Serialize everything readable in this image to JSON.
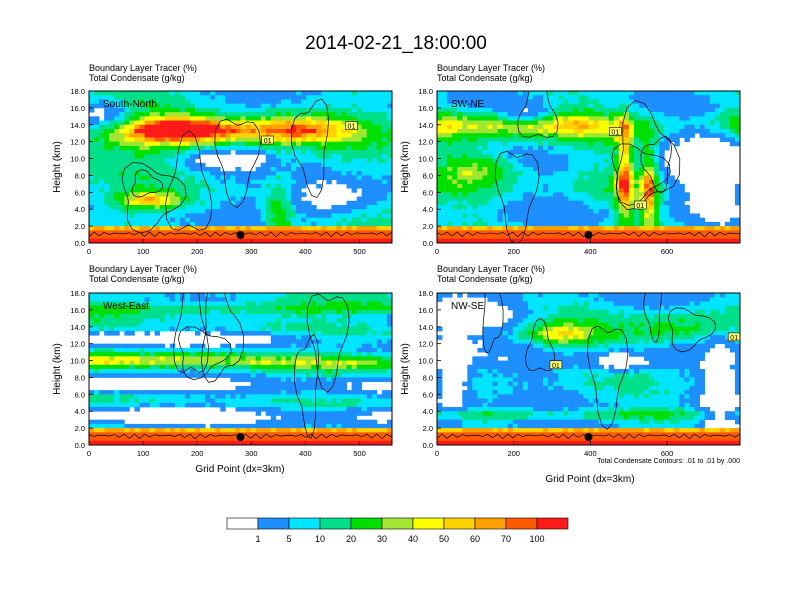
{
  "main_title": "2014-02-21_18:00:00",
  "colors": {
    "levels": [
      "#ffffff",
      "#1e8fff",
      "#00e5ff",
      "#00e08a",
      "#00e000",
      "#a0e632",
      "#ffff00",
      "#ffd200",
      "#ffa000",
      "#ff5a00",
      "#ff1a1a"
    ],
    "contour": "#000000",
    "marker": "#000000"
  },
  "colorbar": {
    "labels": [
      "1",
      "5",
      "10",
      "20",
      "30",
      "40",
      "50",
      "60",
      "70",
      "100"
    ]
  },
  "chart_data": [
    {
      "type": "heatmap",
      "title": "South-North",
      "subtitle_lines": [
        "Boundary Layer Tracer   (%)",
        "Total Condensate   (g/kg)"
      ],
      "ylabel": "Height (km)",
      "xlabel": "",
      "ylim": [
        0,
        18
      ],
      "xlim": [
        0,
        560
      ],
      "yticks": [
        "0.0",
        "2.0",
        "4.0",
        "6.0",
        "8.0",
        "10.0",
        "12.0",
        "14.0",
        "16.0",
        "18.0"
      ],
      "xticks": [
        "0",
        "100",
        "200",
        "300",
        "400",
        "500"
      ],
      "marker_x": 280,
      "contour_labels": [
        {
          "text": "01",
          "x": 330,
          "y": 12.2
        },
        {
          "text": "01",
          "x": 485,
          "y": 13.9
        }
      ]
    },
    {
      "type": "heatmap",
      "title": "SW-NE",
      "subtitle_lines": [
        "Boundary Layer Tracer   (%)",
        "Total Condensate   (g/kg)"
      ],
      "ylabel": "Height (km)",
      "xlabel": "",
      "ylim": [
        0,
        18
      ],
      "xlim": [
        0,
        790
      ],
      "yticks": [
        "0.0",
        "2.0",
        "4.0",
        "6.0",
        "8.0",
        "10.0",
        "12.0",
        "14.0",
        "16.0",
        "18.0"
      ],
      "xticks": [
        "0",
        "200",
        "400",
        "600"
      ],
      "marker_x": 395,
      "contour_labels": [
        {
          "text": "01",
          "x": 465,
          "y": 13.2
        },
        {
          "text": "01",
          "x": 530,
          "y": 4.5
        }
      ]
    },
    {
      "type": "heatmap",
      "title": "West-East",
      "subtitle_lines": [
        "Boundary Layer Tracer   (%)",
        "Total Condensate   (g/kg)"
      ],
      "ylabel": "Height (km)",
      "xlabel": "Grid Point (dx=3km)",
      "ylim": [
        0,
        18
      ],
      "xlim": [
        0,
        560
      ],
      "yticks": [
        "0.0",
        "2.0",
        "4.0",
        "6.0",
        "8.0",
        "10.0",
        "12.0",
        "14.0",
        "16.0",
        "18.0"
      ],
      "xticks": [
        "0",
        "100",
        "200",
        "300",
        "400",
        "500"
      ],
      "marker_x": 280,
      "contour_labels": []
    },
    {
      "type": "heatmap",
      "title": "NW-SE",
      "subtitle_lines": [
        "Boundary Layer Tracer   (%)",
        "Total Condensate   (g/kg)"
      ],
      "ylabel": "Height (km)",
      "xlabel": "Grid Point (dx=3km)",
      "ylim": [
        0,
        18
      ],
      "xlim": [
        0,
        790
      ],
      "yticks": [
        "0.0",
        "2.0",
        "4.0",
        "6.0",
        "8.0",
        "10.0",
        "12.0",
        "14.0",
        "16.0",
        "18.0"
      ],
      "xticks": [
        "0",
        "200",
        "400",
        "600"
      ],
      "marker_x": 395,
      "contour_labels": [
        {
          "text": "01",
          "x": 310,
          "y": 9.5
        },
        {
          "text": "01",
          "x": 775,
          "y": 12.8
        }
      ],
      "footnote": "Total Condensate Contours: .01 to .01 by .000"
    }
  ]
}
